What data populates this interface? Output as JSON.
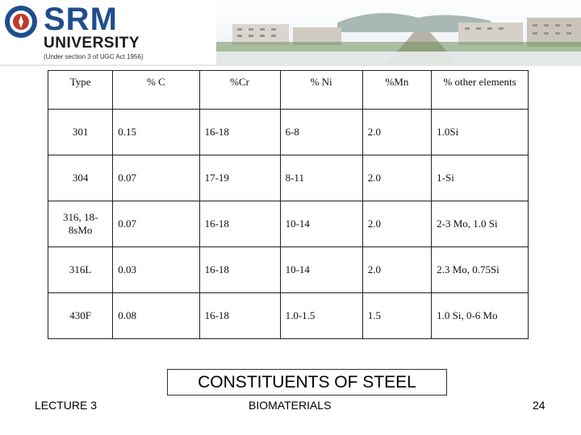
{
  "logo": {
    "wordmark": "SRM",
    "subtitle": "UNIVERSITY",
    "note": "(Under section 3 of UGC Act 1956)",
    "brand_color": "#1f4e8c"
  },
  "table": {
    "headers": [
      "Type",
      "% C",
      "%Cr",
      "% Ni",
      "%Mn",
      "% other elements"
    ],
    "rows": [
      [
        "301",
        "0.15",
        "16-18",
        "6-8",
        "2.0",
        "1.0Si"
      ],
      [
        "304",
        "0.07",
        "17-19",
        "8-11",
        "2.0",
        "1-Si"
      ],
      [
        "316, 18-8sMo",
        "0.07",
        "16-18",
        "10-14",
        "2.0",
        "2-3 Mo, 1.0 Si"
      ],
      [
        "316L",
        "0.03",
        "16-18",
        "10-14",
        "2.0",
        "2.3 Mo, 0.75Si"
      ],
      [
        "430F",
        "0.08",
        "16-18",
        "1.0-1.5",
        "1.5",
        "1.0 Si, 0-6 Mo"
      ]
    ]
  },
  "caption": "CONSTITUENTS  OF STEEL",
  "footer": {
    "left": "LECTURE 3",
    "center": "BIOMATERIALS",
    "page": "24"
  }
}
